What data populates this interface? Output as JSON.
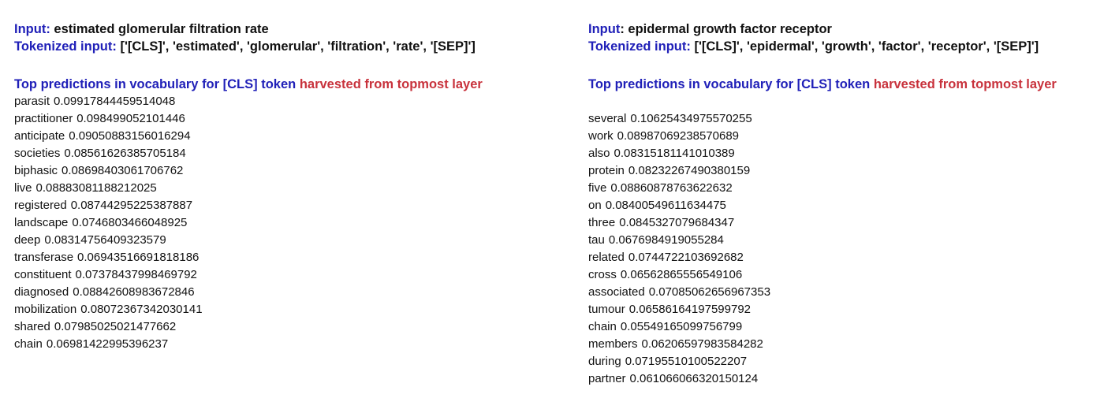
{
  "colors": {
    "label_blue": "#2020b8",
    "highlight_red": "#c8323c",
    "text": "#111111",
    "background": "#ffffff"
  },
  "left": {
    "input_label": "Input:",
    "input_value": "estimated glomerular filtration rate",
    "tokenized_label": "Tokenized input:",
    "tokenized_value": "['[CLS]', 'estimated', 'glomerular', 'filtration', 'rate', '[SEP]']",
    "heading_blue": "Top predictions in vocabulary for [CLS] token",
    "heading_red": "harvested from topmost layer",
    "predictions": [
      {
        "word": "parasit",
        "score": "0.09917844459514048"
      },
      {
        "word": "practitioner",
        "score": "0.098499052101446"
      },
      {
        "word": "anticipate",
        "score": "0.09050883156016294"
      },
      {
        "word": "societies",
        "score": "0.08561626385705184"
      },
      {
        "word": "biphasic",
        "score": "0.08698403061706762"
      },
      {
        "word": "live",
        "score": "0.08883081188212025"
      },
      {
        "word": "registered",
        "score": "0.08744295225387887"
      },
      {
        "word": "landscape",
        "score": "0.0746803466048925"
      },
      {
        "word": "deep",
        "score": "0.08314756409323579"
      },
      {
        "word": "transferase",
        "score": "0.06943516691818186"
      },
      {
        "word": "constituent",
        "score": "0.07378437998469792"
      },
      {
        "word": "diagnosed",
        "score": "0.08842608983672846"
      },
      {
        "word": "mobilization",
        "score": "0.08072367342030141"
      },
      {
        "word": "shared",
        "score": "0.07985025021477662"
      },
      {
        "word": "chain",
        "score": "0.06981422995396237"
      }
    ]
  },
  "right": {
    "input_label": "Input",
    "input_colon": ":",
    "input_value": "epidermal growth factor receptor",
    "tokenized_label": "Tokenized input:",
    "tokenized_value": "['[CLS]', 'epidermal', 'growth', 'factor', 'receptor', '[SEP]']",
    "heading_blue": "Top predictions in vocabulary for [CLS] token",
    "heading_red": "harvested from topmost layer",
    "predictions": [
      {
        "word": "several",
        "score": "0.10625434975570255"
      },
      {
        "word": "work",
        "score": "0.08987069238570689"
      },
      {
        "word": "also",
        "score": "0.08315181141010389"
      },
      {
        "word": "protein",
        "score": "0.08232267490380159"
      },
      {
        "word": "five",
        "score": "0.08860878763622632"
      },
      {
        "word": "on",
        "score": "0.08400549611634475"
      },
      {
        "word": "three",
        "score": "0.0845327079684347"
      },
      {
        "word": "tau",
        "score": "0.0676984919055284"
      },
      {
        "word": "related",
        "score": "0.0744722103692682"
      },
      {
        "word": "cross",
        "score": "0.06562865556549106"
      },
      {
        "word": "associated",
        "score": "0.07085062656967353"
      },
      {
        "word": "tumour",
        "score": "0.06586164197599792"
      },
      {
        "word": "chain",
        "score": "0.05549165099756799"
      },
      {
        "word": "members",
        "score": "0.06206597983584282"
      },
      {
        "word": "during",
        "score": "0.07195510100522207"
      },
      {
        "word": "partner",
        "score": "0.061066066320150124"
      }
    ]
  }
}
